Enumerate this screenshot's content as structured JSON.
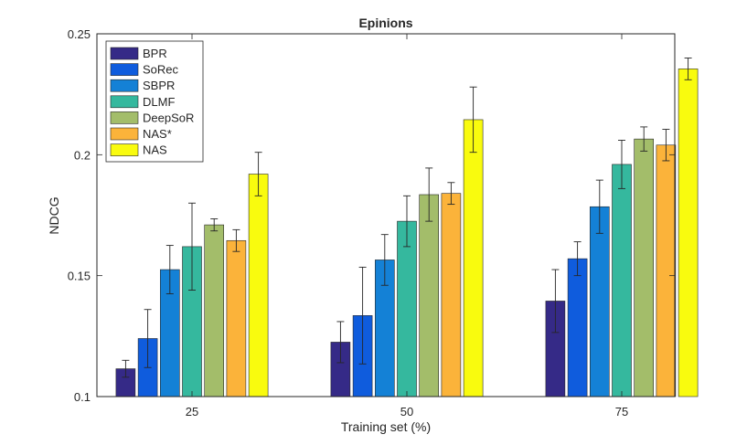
{
  "chart_data": {
    "type": "bar",
    "title": "Epinions",
    "xlabel": "Training set (%)",
    "ylabel": "NDCG",
    "categories": [
      "25",
      "50",
      "75"
    ],
    "ylim": [
      0.1,
      0.25
    ],
    "yticks": [
      0.1,
      0.15,
      0.2,
      0.25
    ],
    "ytick_labels": [
      "0.1",
      "0.15",
      "0.2",
      "0.25"
    ],
    "grid": false,
    "legend_position": "top-left",
    "series": [
      {
        "name": "BPR",
        "color": "#352a87",
        "values": [
          0.1115,
          0.1225,
          0.1395
        ],
        "errors": [
          0.0035,
          0.0085,
          0.013
        ]
      },
      {
        "name": "SoRec",
        "color": "#0f5cdd",
        "values": [
          0.124,
          0.1335,
          0.157
        ],
        "errors": [
          0.012,
          0.02,
          0.007
        ]
      },
      {
        "name": "SBPR",
        "color": "#1481d6",
        "values": [
          0.1525,
          0.1565,
          0.1785
        ],
        "errors": [
          0.01,
          0.0105,
          0.011
        ]
      },
      {
        "name": "DLMF",
        "color": "#35b89e",
        "values": [
          0.162,
          0.1725,
          0.196
        ],
        "errors": [
          0.018,
          0.0105,
          0.01
        ]
      },
      {
        "name": "DeepSoR",
        "color": "#a3bd6a",
        "values": [
          0.171,
          0.1835,
          0.2065
        ],
        "errors": [
          0.0025,
          0.011,
          0.005
        ]
      },
      {
        "name": "NAS*",
        "color": "#fbb33a",
        "values": [
          0.1645,
          0.184,
          0.204
        ],
        "errors": [
          0.0045,
          0.0045,
          0.0065
        ]
      },
      {
        "name": "NAS",
        "color": "#f9fb0e",
        "values": [
          0.192,
          0.2145,
          0.2355
        ],
        "errors": [
          0.009,
          0.0135,
          0.0045
        ]
      }
    ]
  }
}
